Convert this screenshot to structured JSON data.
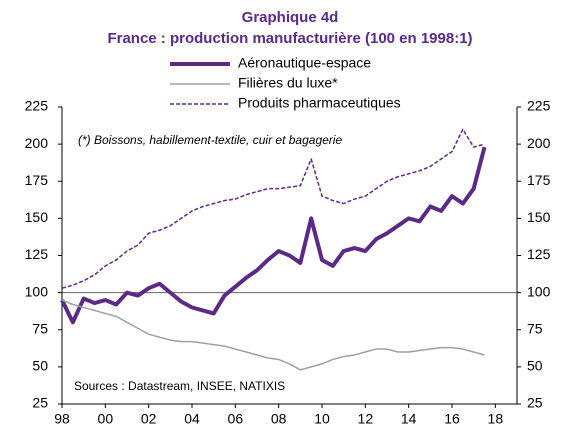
{
  "chart_data": {
    "type": "line",
    "title": "Graphique 4d",
    "subtitle": "France : production manufacturière (100 en 1998:1)",
    "annotations": [
      "(*) Boissons, habillement-textile, cuir et bagagerie",
      "Sources : Datastream, INSEE, NATIXIS"
    ],
    "x": [
      1998,
      1998.5,
      1999,
      1999.5,
      2000,
      2000.5,
      2001,
      2001.5,
      2002,
      2002.5,
      2003,
      2003.5,
      2004,
      2004.5,
      2005,
      2005.5,
      2006,
      2006.5,
      2007,
      2007.5,
      2008,
      2008.5,
      2009,
      2009.5,
      2010,
      2010.5,
      2011,
      2011.5,
      2012,
      2012.5,
      2013,
      2013.5,
      2014,
      2014.5,
      2015,
      2015.5,
      2016,
      2016.5,
      2017,
      2017.5
    ],
    "series": [
      {
        "name": "Aéronautique-espace",
        "color": "#5b2a86",
        "style": "solid",
        "width": 4,
        "values": [
          95,
          80,
          96,
          93,
          95,
          92,
          100,
          98,
          103,
          106,
          100,
          94,
          90,
          88,
          86,
          98,
          104,
          110,
          115,
          122,
          128,
          125,
          120,
          150,
          122,
          118,
          128,
          130,
          128,
          136,
          140,
          145,
          150,
          148,
          158,
          155,
          165,
          160,
          170,
          198
        ]
      },
      {
        "name": "Filières du luxe*",
        "color": "#a0a0a0",
        "style": "solid",
        "width": 1.5,
        "values": [
          95,
          92,
          90,
          88,
          86,
          84,
          80,
          76,
          72,
          70,
          68,
          67,
          67,
          66,
          65,
          64,
          62,
          60,
          58,
          56,
          55,
          52,
          48,
          50,
          52,
          55,
          57,
          58,
          60,
          62,
          62,
          60,
          60,
          61,
          62,
          63,
          63,
          62,
          60,
          58
        ]
      },
      {
        "name": "Produits pharmaceutiques",
        "color": "#5b2a86",
        "style": "dashed",
        "width": 1.5,
        "values": [
          103,
          105,
          108,
          112,
          118,
          122,
          128,
          132,
          140,
          142,
          145,
          150,
          155,
          158,
          160,
          162,
          163,
          166,
          168,
          170,
          170,
          171,
          172,
          190,
          165,
          162,
          160,
          163,
          165,
          170,
          175,
          178,
          180,
          182,
          185,
          190,
          195,
          210,
          198,
          200
        ]
      }
    ],
    "xlim": [
      1998,
      2019
    ],
    "xticks": [
      {
        "value": 1998,
        "label": "98"
      },
      {
        "value": 2000,
        "label": "00"
      },
      {
        "value": 2002,
        "label": "02"
      },
      {
        "value": 2004,
        "label": "04"
      },
      {
        "value": 2006,
        "label": "06"
      },
      {
        "value": 2008,
        "label": "08"
      },
      {
        "value": 2010,
        "label": "10"
      },
      {
        "value": 2012,
        "label": "12"
      },
      {
        "value": 2014,
        "label": "14"
      },
      {
        "value": 2016,
        "label": "16"
      },
      {
        "value": 2018,
        "label": "18"
      }
    ],
    "ylim": [
      25,
      225
    ],
    "yticks": [
      25,
      50,
      75,
      100,
      125,
      150,
      175,
      200,
      225
    ],
    "y2lim": [
      25,
      225
    ],
    "y2ticks": [
      25,
      50,
      75,
      100,
      125,
      150,
      175,
      200,
      225
    ],
    "reference_line": 100,
    "grid": false
  }
}
